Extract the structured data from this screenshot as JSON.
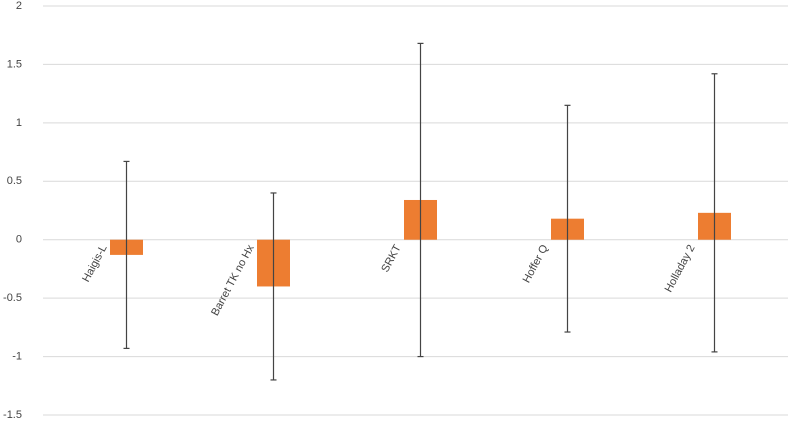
{
  "chart_data": {
    "type": "bar",
    "categories": [
      "Haigis-L",
      "Barret TK no Hx",
      "SRKT",
      "Hoffer Q",
      "Holladay 2"
    ],
    "values": [
      -0.13,
      -0.4,
      0.34,
      0.18,
      0.23
    ],
    "errors": [
      0.8,
      0.8,
      1.34,
      0.97,
      1.19
    ],
    "color": "#ed7d31",
    "ylim": [
      -1.5,
      2
    ],
    "yticks": [
      -1.5,
      -1,
      -0.5,
      0,
      0.5,
      1,
      1.5,
      2
    ],
    "grid": true
  }
}
